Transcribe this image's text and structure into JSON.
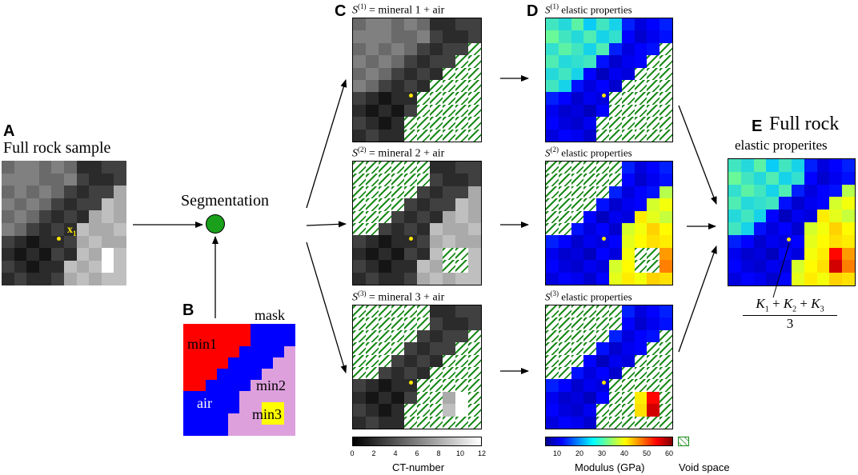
{
  "panel_a": {
    "letter": "A",
    "title": "Full rock sample",
    "point_label": "x",
    "point_sub": "1"
  },
  "panel_b": {
    "letter": "B",
    "title": "mask",
    "regions": {
      "min1": "min1",
      "air": "air",
      "min2": "min2",
      "min3": "min3"
    }
  },
  "segmentation": {
    "label": "Segmentation"
  },
  "panel_c": {
    "letter": "C",
    "captions": [
      {
        "s": "S",
        "sup": "(1)",
        "text": " = mineral 1  + air"
      },
      {
        "s": "S",
        "sup": "(2)",
        "text": " = mineral 2  + air"
      },
      {
        "s": "S",
        "sup": "(3)",
        "text": " = mineral 3  + air"
      }
    ],
    "colorbar": {
      "label": "CT-number",
      "ticks": [
        "0",
        "2",
        "4",
        "6",
        "8",
        "10",
        "12"
      ]
    }
  },
  "panel_d": {
    "letter": "D",
    "captions": [
      {
        "s": "S",
        "sup": "(1)",
        "text": " elastic properties"
      },
      {
        "s": "S",
        "sup": "(2)",
        "text": " elastic properties"
      },
      {
        "s": "S",
        "sup": "(3)",
        "text": " elastic properties"
      }
    ],
    "colorbar": {
      "label": "Modulus (GPa)",
      "ticks": [
        "10",
        "20",
        "30",
        "40",
        "50",
        "60"
      ]
    },
    "void_label": "Void space"
  },
  "panel_e": {
    "letter": "E",
    "title_line1": "Full rock",
    "title_line2": "elastic properites",
    "formula": {
      "k1": "K",
      "s1": "1",
      "k2": "K",
      "s2": "2",
      "k3": "K",
      "s3": "3",
      "plus": " + ",
      "den": "3"
    }
  },
  "colors": {
    "hatch": "#1a8a1a",
    "node": "#1aa01a",
    "point": "#ffe600",
    "min1": "#ff0000",
    "air": "#0000ff",
    "min2": "#dda0dd",
    "min3": "#ffff00"
  }
}
